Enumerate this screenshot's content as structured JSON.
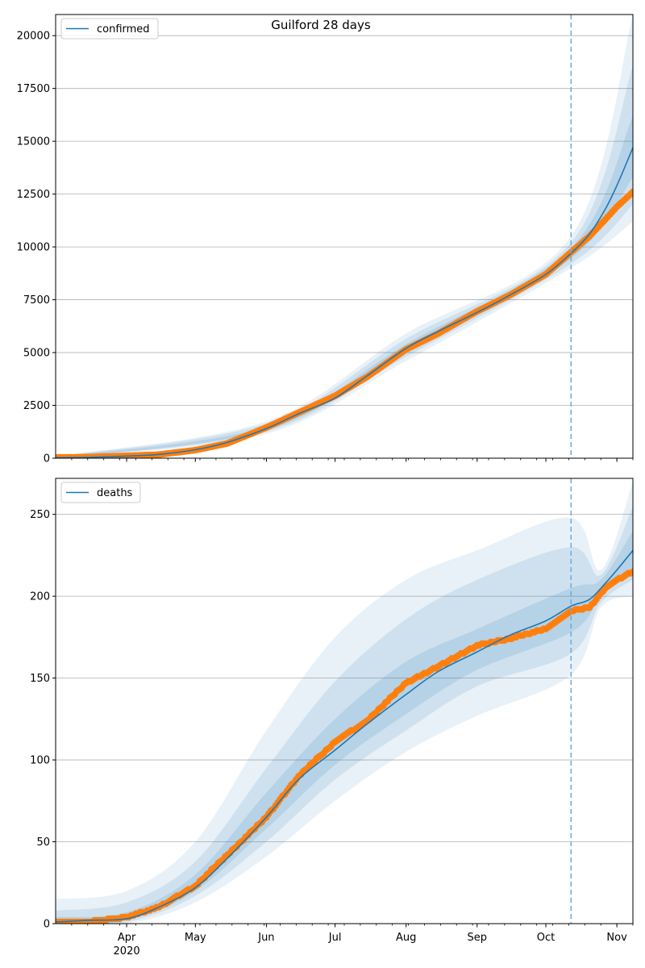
{
  "figure": {
    "title": "Guilford 28 days"
  },
  "colors": {
    "model_line": "#1f77b4",
    "observed": "#ff7f0e",
    "band": "#1f77b4",
    "grid": "#b0b0b0",
    "forecast_start_line": "#6fa8dc"
  },
  "x_axis": {
    "range": [
      "2020-03-01",
      "2020-11-08"
    ],
    "month_ticks": [
      {
        "date": "2020-04-01",
        "label": "Apr",
        "sub": "2020"
      },
      {
        "date": "2020-05-01",
        "label": "May",
        "sub": ""
      },
      {
        "date": "2020-06-01",
        "label": "Jun",
        "sub": ""
      },
      {
        "date": "2020-07-01",
        "label": "Jul",
        "sub": ""
      },
      {
        "date": "2020-08-01",
        "label": "Aug",
        "sub": ""
      },
      {
        "date": "2020-09-01",
        "label": "Sep",
        "sub": ""
      },
      {
        "date": "2020-10-01",
        "label": "Oct",
        "sub": ""
      },
      {
        "date": "2020-11-01",
        "label": "Nov",
        "sub": ""
      }
    ],
    "forecast_start": "2020-10-12"
  },
  "chart_data": [
    {
      "type": "line",
      "legend": [
        "confirmed"
      ],
      "legend_placement": "top-left",
      "title": "Guilford 28 days",
      "grid": "horizontal",
      "ylim": [
        0,
        21000
      ],
      "yticks": [
        0,
        2500,
        5000,
        7500,
        10000,
        12500,
        15000,
        17500,
        20000
      ],
      "series": [
        {
          "name": "confirmed",
          "kind": "model",
          "x": [
            "2020-03-01",
            "2020-03-15",
            "2020-04-01",
            "2020-04-15",
            "2020-05-01",
            "2020-05-15",
            "2020-06-01",
            "2020-06-15",
            "2020-07-01",
            "2020-07-15",
            "2020-08-01",
            "2020-08-15",
            "2020-09-01",
            "2020-09-15",
            "2020-10-01",
            "2020-10-12",
            "2020-10-20",
            "2020-10-27",
            "2020-11-01",
            "2020-11-08"
          ],
          "values": [
            20,
            40,
            100,
            180,
            400,
            750,
            1400,
            2100,
            2850,
            3900,
            5200,
            6000,
            6900,
            7700,
            8700,
            9700,
            10600,
            11800,
            12900,
            14700
          ]
        },
        {
          "name": "",
          "kind": "observed",
          "x": [
            "2020-03-01",
            "2020-03-15",
            "2020-04-01",
            "2020-04-15",
            "2020-05-01",
            "2020-05-15",
            "2020-06-01",
            "2020-06-15",
            "2020-07-01",
            "2020-07-15",
            "2020-08-01",
            "2020-08-15",
            "2020-09-01",
            "2020-09-15",
            "2020-10-01",
            "2020-10-12",
            "2020-10-20",
            "2020-10-27",
            "2020-11-01",
            "2020-11-08"
          ],
          "values": [
            30,
            50,
            110,
            170,
            380,
            700,
            1450,
            2150,
            2950,
            3850,
            5150,
            5900,
            6950,
            7700,
            8700,
            9750,
            10500,
            11300,
            11900,
            12600
          ]
        }
      ],
      "bands": [
        {
          "x": [
            "2020-03-01",
            "2020-06-01",
            "2020-08-01",
            "2020-10-12",
            "2020-11-08"
          ],
          "lower": [
            0,
            1150,
            4600,
            9000,
            11200
          ],
          "upper": [
            100,
            1750,
            5900,
            10500,
            21000
          ]
        },
        {
          "x": [
            "2020-03-01",
            "2020-06-01",
            "2020-08-01",
            "2020-10-12",
            "2020-11-08"
          ],
          "lower": [
            0,
            1250,
            4800,
            9200,
            12000
          ],
          "upper": [
            80,
            1650,
            5650,
            10200,
            18600
          ]
        },
        {
          "x": [
            "2020-03-01",
            "2020-06-01",
            "2020-08-01",
            "2020-10-12",
            "2020-11-08"
          ],
          "lower": [
            0,
            1330,
            5000,
            9450,
            13300
          ],
          "upper": [
            60,
            1500,
            5400,
            9950,
            16200
          ]
        }
      ]
    },
    {
      "type": "line",
      "legend": [
        "deaths"
      ],
      "legend_placement": "top-left",
      "title": "",
      "grid": "horizontal",
      "ylim": [
        0,
        272
      ],
      "yticks": [
        0,
        50,
        100,
        150,
        200,
        250
      ],
      "series": [
        {
          "name": "deaths",
          "kind": "model",
          "x": [
            "2020-03-01",
            "2020-03-15",
            "2020-04-01",
            "2020-04-15",
            "2020-05-01",
            "2020-05-15",
            "2020-06-01",
            "2020-06-15",
            "2020-07-01",
            "2020-07-15",
            "2020-08-01",
            "2020-08-15",
            "2020-09-01",
            "2020-09-15",
            "2020-10-01",
            "2020-10-12",
            "2020-10-20",
            "2020-10-27",
            "2020-11-01",
            "2020-11-08"
          ],
          "values": [
            1,
            2,
            3,
            10,
            22,
            40,
            65,
            88,
            106,
            122,
            140,
            154,
            166,
            176,
            185,
            194,
            198,
            208,
            216,
            228
          ]
        },
        {
          "name": "",
          "kind": "observed",
          "x": [
            "2020-03-01",
            "2020-03-15",
            "2020-04-01",
            "2020-04-15",
            "2020-05-01",
            "2020-05-15",
            "2020-06-01",
            "2020-06-15",
            "2020-07-01",
            "2020-07-15",
            "2020-08-01",
            "2020-08-15",
            "2020-09-01",
            "2020-09-15",
            "2020-10-01",
            "2020-10-12",
            "2020-10-20",
            "2020-10-27",
            "2020-11-01",
            "2020-11-08"
          ],
          "values": [
            1,
            1,
            4,
            10,
            23,
            42,
            65,
            90,
            111,
            124,
            147,
            157,
            170,
            174,
            180,
            191,
            193,
            205,
            210,
            215
          ]
        }
      ],
      "bands": [
        {
          "x": [
            "2020-03-01",
            "2020-04-01",
            "2020-05-01",
            "2020-06-01",
            "2020-07-01",
            "2020-08-01",
            "2020-09-01",
            "2020-10-12",
            "2020-10-25",
            "2020-11-08"
          ],
          "lower": [
            0,
            0,
            13,
            41,
            75,
            105,
            127,
            152,
            193,
            200
          ],
          "upper": [
            15,
            20,
            50,
            118,
            175,
            210,
            228,
            248,
            216,
            270
          ]
        },
        {
          "x": [
            "2020-03-01",
            "2020-04-01",
            "2020-05-01",
            "2020-06-01",
            "2020-07-01",
            "2020-08-01",
            "2020-09-01",
            "2020-10-12",
            "2020-10-25",
            "2020-11-08"
          ],
          "lower": [
            0,
            1,
            17,
            50,
            88,
            118,
            145,
            165,
            196,
            210
          ],
          "upper": [
            8,
            13,
            38,
            95,
            148,
            186,
            210,
            230,
            213,
            255
          ]
        },
        {
          "x": [
            "2020-03-01",
            "2020-04-01",
            "2020-05-01",
            "2020-06-01",
            "2020-07-01",
            "2020-08-01",
            "2020-09-01",
            "2020-10-12",
            "2020-10-25",
            "2020-11-08"
          ],
          "lower": [
            0,
            2,
            20,
            58,
            97,
            128,
            155,
            178,
            199,
            218
          ],
          "upper": [
            4,
            7,
            30,
            80,
            125,
            160,
            180,
            205,
            210,
            240
          ]
        }
      ]
    }
  ]
}
